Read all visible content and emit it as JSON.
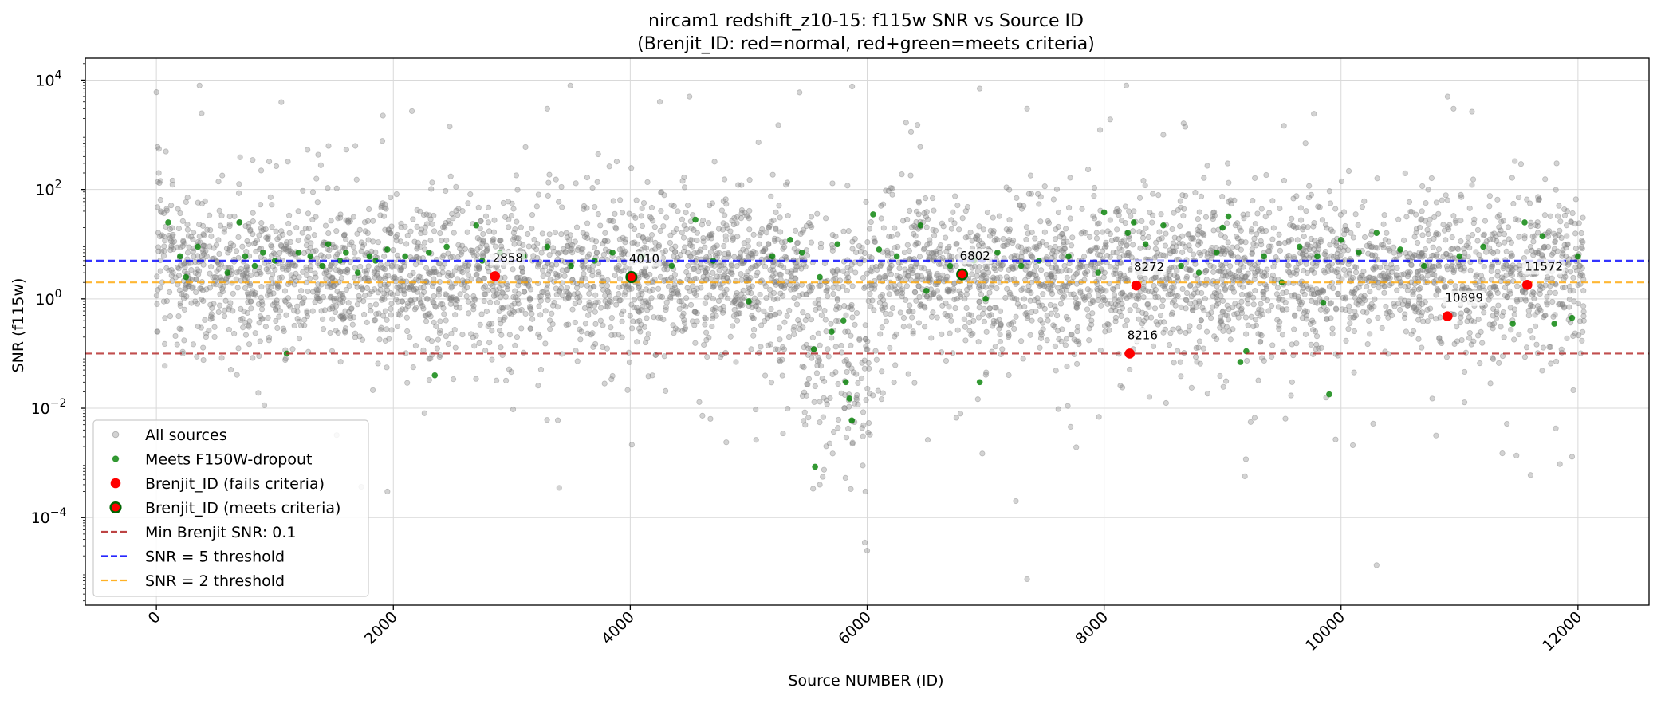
{
  "chart_data": {
    "type": "scatter",
    "title": "nircam1 redshift_z10-15: f115w SNR vs Source ID",
    "subtitle": "(Brenjit_ID: red=normal, red+green=meets criteria)",
    "xlabel": "Source NUMBER (ID)",
    "ylabel": "SNR (f115w)",
    "x_scale": "linear",
    "y_scale": "log",
    "xlim": [
      -600,
      12600
    ],
    "ylim_log10": [
      -5.6,
      4.4
    ],
    "x_ticks": [
      0,
      2000,
      4000,
      6000,
      8000,
      10000,
      12000
    ],
    "x_tick_labels": [
      "0",
      "2000",
      "4000",
      "6000",
      "8000",
      "10000",
      "12000"
    ],
    "y_ticks_log10": [
      -4,
      -2,
      0,
      2,
      4
    ],
    "y_tick_base": "10",
    "y_tick_exponents": [
      "−4",
      "−2",
      "0",
      "2",
      "4"
    ],
    "grid": true,
    "legend_position": "lower-left",
    "legend": [
      {
        "label": "All sources",
        "kind": "point",
        "color": "#808080"
      },
      {
        "label": "Meets F150W-dropout",
        "kind": "point",
        "color": "#008000"
      },
      {
        "label": "Brenjit_ID (fails criteria)",
        "kind": "big-point",
        "color": "#ff0000"
      },
      {
        "label": "Brenjit_ID (meets criteria)",
        "kind": "big-point-edge",
        "color": "#ff0000",
        "edge": "#006400"
      },
      {
        "label": "Min Brenjit SNR: 0.1",
        "kind": "line",
        "color": "#b22222"
      },
      {
        "label": "SNR = 5 threshold",
        "kind": "line",
        "color": "#0000ff"
      },
      {
        "label": "SNR = 2 threshold",
        "kind": "line",
        "color": "#ffa500"
      }
    ],
    "thresholds": [
      {
        "name": "Min Brenjit SNR: 0.1",
        "y": 0.1,
        "color": "#b22222"
      },
      {
        "name": "SNR = 5 threshold",
        "y": 5,
        "color": "#0000ff"
      },
      {
        "name": "SNR = 2 threshold",
        "y": 2,
        "color": "#ffa500"
      }
    ],
    "series": [
      {
        "name": "All sources",
        "color": "#808080",
        "count_approx": 12000,
        "x_range": [
          0,
          12050
        ],
        "median_snr": 3,
        "notable_points": [
          {
            "x": 0,
            "y": 6000
          },
          {
            "x": 10,
            "y": 600
          },
          {
            "x": 20,
            "y": 200
          },
          {
            "x": 4250,
            "y": 4000
          },
          {
            "x": 4500,
            "y": 5000
          },
          {
            "x": 6950,
            "y": 7000
          },
          {
            "x": 10900,
            "y": 5000
          },
          {
            "x": 10950,
            "y": 3000
          },
          {
            "x": 3300,
            "y": 3000
          },
          {
            "x": 5250,
            "y": 1500
          },
          {
            "x": 7350,
            "y": 3000
          },
          {
            "x": 8500,
            "y": 1000
          },
          {
            "x": 9700,
            "y": 700
          },
          {
            "x": 5980,
            "y": 3.5e-05
          },
          {
            "x": 6000,
            "y": 2.5e-05
          },
          {
            "x": 7350,
            "y": 7.5e-06
          },
          {
            "x": 10300,
            "y": 1.35e-05
          },
          {
            "x": 3400,
            "y": 0.00035
          },
          {
            "x": 1950,
            "y": 0.0003
          },
          {
            "x": 5600,
            "y": 0.0004
          },
          {
            "x": 11600,
            "y": 0.0006
          },
          {
            "x": 11950,
            "y": 0.0013
          }
        ]
      },
      {
        "name": "Meets F150W-dropout",
        "color": "#008000",
        "points": [
          [
            100,
            25
          ],
          [
            200,
            6
          ],
          [
            250,
            2.5
          ],
          [
            350,
            9
          ],
          [
            600,
            3
          ],
          [
            700,
            25
          ],
          [
            750,
            6
          ],
          [
            830,
            4
          ],
          [
            900,
            7
          ],
          [
            1000,
            5
          ],
          [
            1100,
            0.1
          ],
          [
            1200,
            7
          ],
          [
            1300,
            6
          ],
          [
            1400,
            4
          ],
          [
            1450,
            10
          ],
          [
            1550,
            5
          ],
          [
            1600,
            7
          ],
          [
            1700,
            3
          ],
          [
            1800,
            6
          ],
          [
            1850,
            5
          ],
          [
            1950,
            8
          ],
          [
            2100,
            6
          ],
          [
            2300,
            7
          ],
          [
            2350,
            0.04
          ],
          [
            2450,
            9
          ],
          [
            2700,
            22
          ],
          [
            2750,
            5
          ],
          [
            2900,
            7
          ],
          [
            3100,
            6
          ],
          [
            3300,
            9
          ],
          [
            3500,
            4
          ],
          [
            3700,
            5
          ],
          [
            3850,
            7
          ],
          [
            4100,
            6
          ],
          [
            4350,
            4
          ],
          [
            4550,
            28
          ],
          [
            4700,
            5
          ],
          [
            5000,
            0.9
          ],
          [
            5200,
            6
          ],
          [
            5350,
            12
          ],
          [
            5450,
            7
          ],
          [
            5550,
            0.12
          ],
          [
            5600,
            2.5
          ],
          [
            5700,
            0.25
          ],
          [
            5750,
            10
          ],
          [
            5800,
            0.4
          ],
          [
            5820,
            0.03
          ],
          [
            5850,
            0.015
          ],
          [
            5870,
            0.006
          ],
          [
            5560,
            0.00085
          ],
          [
            6050,
            35
          ],
          [
            6100,
            8
          ],
          [
            6250,
            6
          ],
          [
            6450,
            22
          ],
          [
            6500,
            1.4
          ],
          [
            6700,
            4
          ],
          [
            6900,
            5
          ],
          [
            6950,
            0.03
          ],
          [
            7000,
            1
          ],
          [
            7100,
            7
          ],
          [
            7300,
            4
          ],
          [
            7450,
            5
          ],
          [
            7700,
            6
          ],
          [
            7950,
            3
          ],
          [
            8000,
            38
          ],
          [
            8200,
            16
          ],
          [
            8250,
            25
          ],
          [
            8350,
            10
          ],
          [
            8500,
            22
          ],
          [
            8650,
            4
          ],
          [
            8800,
            3
          ],
          [
            8950,
            7
          ],
          [
            9000,
            20
          ],
          [
            9050,
            32
          ],
          [
            9150,
            0.07
          ],
          [
            9200,
            0.11
          ],
          [
            9350,
            6
          ],
          [
            9500,
            2
          ],
          [
            9650,
            9
          ],
          [
            9800,
            6
          ],
          [
            9850,
            0.85
          ],
          [
            9900,
            0.018
          ],
          [
            10000,
            12
          ],
          [
            10150,
            7
          ],
          [
            10300,
            16
          ],
          [
            10500,
            8
          ],
          [
            10700,
            4
          ],
          [
            11000,
            6
          ],
          [
            11200,
            9
          ],
          [
            11450,
            0.35
          ],
          [
            11550,
            25
          ],
          [
            11700,
            14
          ],
          [
            11800,
            0.35
          ],
          [
            11950,
            0.45
          ],
          [
            12000,
            6
          ]
        ]
      },
      {
        "name": "Brenjit_ID (fails criteria)",
        "color": "#ff0000",
        "points": [
          {
            "id": "2858",
            "x": 2858,
            "y": 2.6
          },
          {
            "id": "8272",
            "x": 8272,
            "y": 1.75
          },
          {
            "id": "8216",
            "x": 8216,
            "y": 0.1
          },
          {
            "id": "10899",
            "x": 10899,
            "y": 0.48
          },
          {
            "id": "11572",
            "x": 11572,
            "y": 1.8
          }
        ]
      },
      {
        "name": "Brenjit_ID (meets criteria)",
        "color": "#ff0000",
        "edge": "#006400",
        "points": [
          {
            "id": "4010",
            "x": 4010,
            "y": 2.5
          },
          {
            "id": "6802",
            "x": 6802,
            "y": 2.8
          }
        ]
      }
    ]
  }
}
